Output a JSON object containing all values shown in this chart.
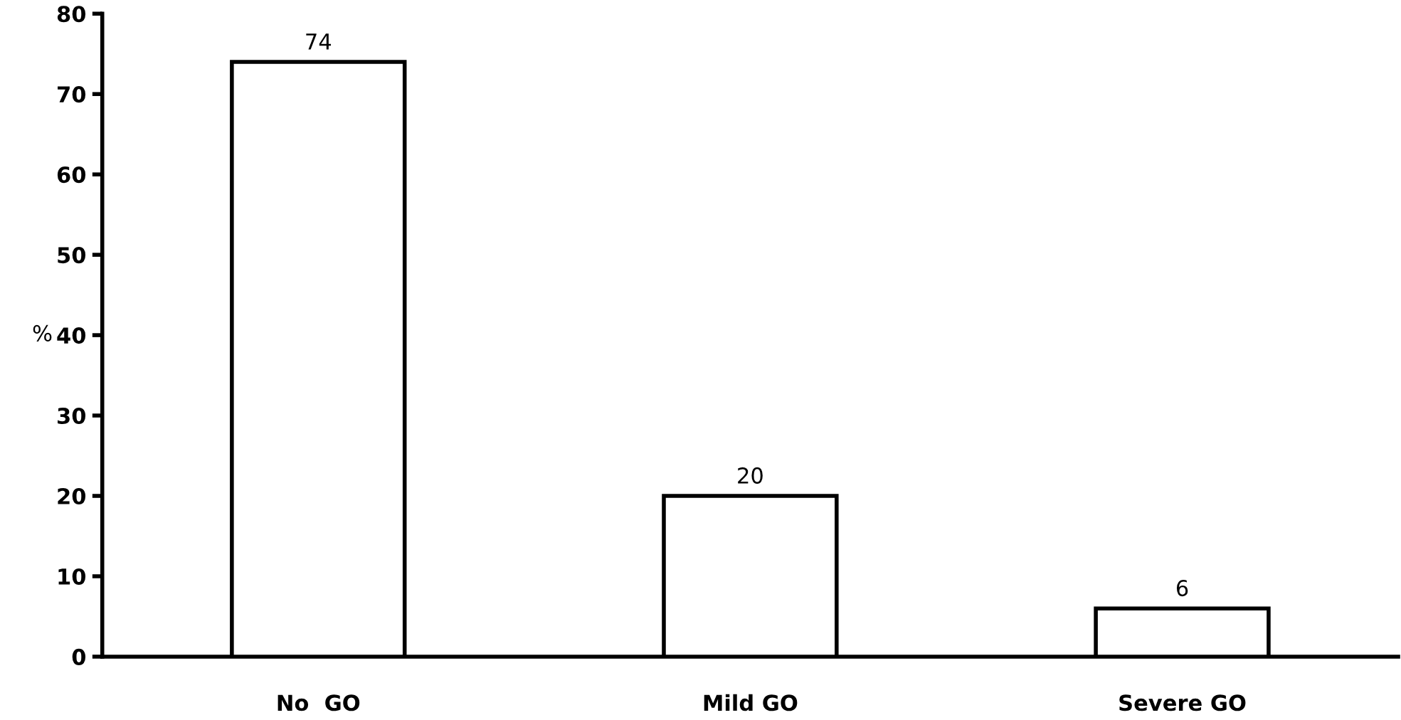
{
  "chart_data": {
    "type": "bar",
    "ylabel": "%",
    "categories": [
      "No  GO",
      "Mild GO",
      "Severe GO"
    ],
    "values": [
      74,
      20,
      6
    ],
    "color": "#ffffff",
    "data_labels": true,
    "ylim": [
      0,
      80
    ],
    "yticks": [
      0,
      10,
      20,
      30,
      40,
      50,
      60,
      70,
      80
    ],
    "grid": false
  }
}
